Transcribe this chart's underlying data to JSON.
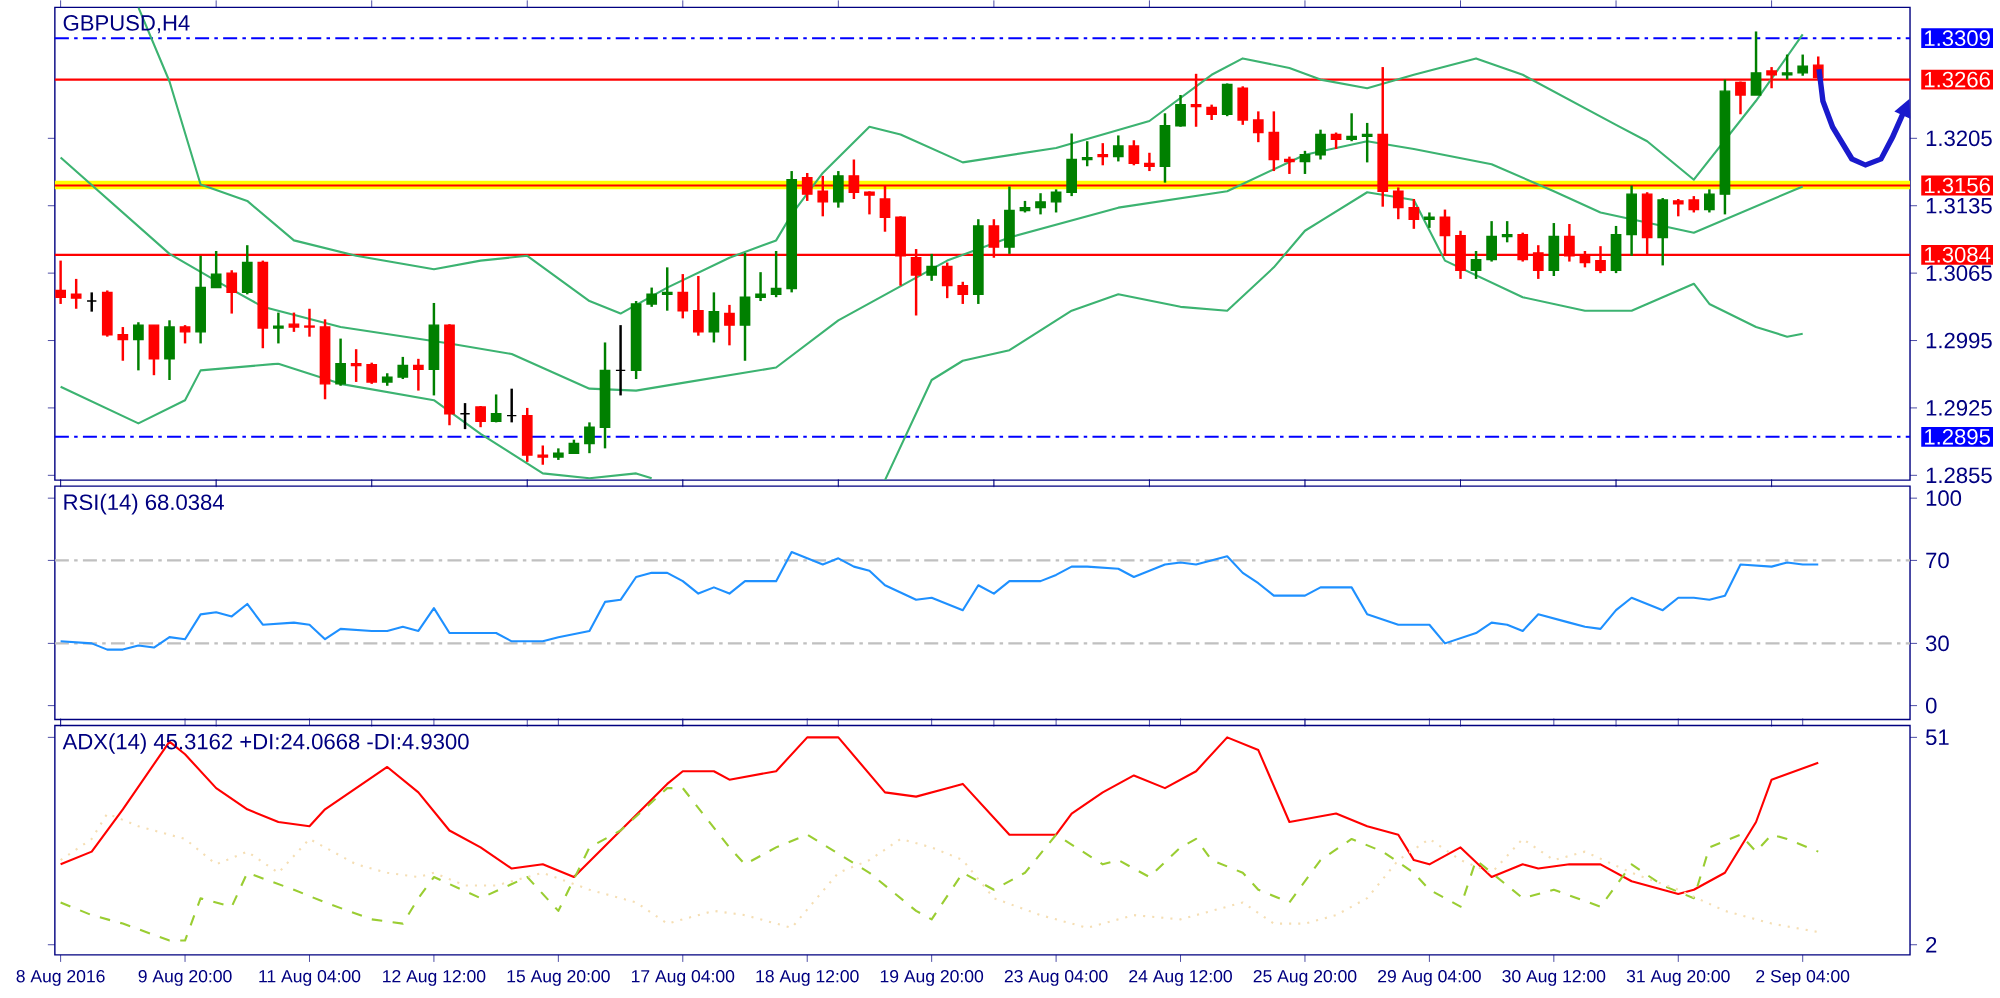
{
  "chart_data": [
    {
      "type": "candlestick",
      "title": "GBPUSD,H4",
      "categories": [
        null,
        null,
        null,
        null,
        null,
        null,
        null,
        null,
        null,
        null,
        null,
        null,
        null,
        null,
        null,
        null,
        null,
        null,
        null,
        null,
        null,
        null,
        null,
        null,
        null,
        null,
        null,
        null,
        null,
        null,
        null,
        null,
        null,
        null,
        null,
        null,
        null,
        null,
        null,
        null,
        null,
        null,
        null,
        null,
        null,
        null,
        null,
        null,
        null,
        null,
        null,
        null,
        null,
        null,
        null,
        null,
        null,
        null,
        null,
        null,
        null,
        null,
        null,
        null,
        null,
        null,
        null,
        null,
        null,
        null,
        null,
        null,
        null,
        null,
        null,
        null,
        null,
        null,
        null,
        null,
        null,
        null,
        null,
        null,
        null,
        null,
        null,
        null,
        null,
        null,
        null,
        null,
        null,
        null,
        null,
        null,
        null,
        null,
        null,
        null,
        null,
        null,
        null,
        null,
        null,
        null,
        null,
        null,
        null,
        null,
        null,
        null,
        null,
        null
      ],
      "ohlc": [
        [
          1.3047,
          1.3078,
          1.3033,
          1.304
        ],
        [
          1.3043,
          1.3059,
          1.3028,
          1.3039
        ],
        [
          1.3036,
          1.3045,
          1.3025,
          1.3036
        ],
        [
          1.3045,
          1.3047,
          1.2999,
          1.3001
        ],
        [
          1.3001,
          1.3009,
          1.2974,
          1.2996
        ],
        [
          1.2996,
          1.3014,
          1.2964,
          1.3011
        ],
        [
          1.3011,
          1.3011,
          1.2959,
          1.2976
        ],
        [
          1.2976,
          1.3016,
          1.2954,
          1.3009
        ],
        [
          1.3009,
          1.3011,
          1.2992,
          1.3004
        ],
        [
          1.3004,
          1.3083,
          1.2992,
          1.305
        ],
        [
          1.305,
          1.3088,
          1.305,
          1.3064
        ],
        [
          1.3065,
          1.3068,
          1.3023,
          1.3045
        ],
        [
          1.3045,
          1.3094,
          1.3043,
          1.3076
        ],
        [
          1.3076,
          1.3078,
          1.2987,
          1.3008
        ],
        [
          1.3008,
          1.3024,
          1.2992,
          1.301
        ],
        [
          1.3012,
          1.3024,
          1.3004,
          1.3009
        ],
        [
          1.301,
          1.3028,
          1.2999,
          1.3009
        ],
        [
          1.3009,
          1.3017,
          1.2934,
          1.295
        ],
        [
          1.295,
          1.2997,
          1.2948,
          1.2971
        ],
        [
          1.2971,
          1.2986,
          1.2952,
          1.2969
        ],
        [
          1.297,
          1.2972,
          1.295,
          1.2952
        ],
        [
          1.2952,
          1.2961,
          1.2948,
          1.2957
        ],
        [
          1.2957,
          1.2978,
          1.2955,
          1.2969
        ],
        [
          1.2969,
          1.2976,
          1.2943,
          1.2965
        ],
        [
          1.2965,
          1.3034,
          1.2938,
          1.3011
        ],
        [
          1.3011,
          1.3012,
          1.2907,
          1.2919
        ],
        [
          1.2919,
          1.293,
          1.2903,
          1.2919
        ],
        [
          1.2926,
          1.2927,
          1.2905,
          1.2911
        ],
        [
          1.2911,
          1.2939,
          1.291,
          1.2919
        ],
        [
          1.2917,
          1.2945,
          1.291,
          1.2917
        ],
        [
          1.2917,
          1.2925,
          1.2869,
          1.2876
        ],
        [
          1.2876,
          1.2886,
          1.2866,
          1.2874
        ],
        [
          1.2874,
          1.2883,
          1.2871,
          1.2878
        ],
        [
          1.2878,
          1.2892,
          1.2878,
          1.2888
        ],
        [
          1.2888,
          1.291,
          1.2878,
          1.2905
        ],
        [
          1.2905,
          1.2993,
          1.2883,
          1.2964
        ],
        [
          1.2964,
          1.3011,
          1.2938,
          1.2964
        ],
        [
          1.2964,
          1.3036,
          1.2955,
          1.3033
        ],
        [
          1.3033,
          1.305,
          1.303,
          1.3043
        ],
        [
          1.3043,
          1.3071,
          1.3026,
          1.3045
        ],
        [
          1.3045,
          1.3064,
          1.3018,
          1.3026
        ],
        [
          1.3026,
          1.3062,
          1.3,
          1.3004
        ],
        [
          1.3004,
          1.3045,
          1.2993,
          1.3025
        ],
        [
          1.3023,
          1.3032,
          1.299,
          1.3011
        ],
        [
          1.3011,
          1.3086,
          1.2974,
          1.304
        ],
        [
          1.304,
          1.3066,
          1.3036,
          1.3043
        ],
        [
          1.3043,
          1.3088,
          1.304,
          1.3049
        ],
        [
          1.3049,
          1.3171,
          1.3045,
          1.3162
        ],
        [
          1.3164,
          1.3169,
          1.314,
          1.3147
        ],
        [
          1.315,
          1.3166,
          1.3124,
          1.3139
        ],
        [
          1.3139,
          1.3171,
          1.3133,
          1.3166
        ],
        [
          1.3166,
          1.3183,
          1.3142,
          1.3149
        ],
        [
          1.3149,
          1.315,
          1.3126,
          1.3146
        ],
        [
          1.3142,
          1.3156,
          1.3108,
          1.3123
        ],
        [
          1.3123,
          1.3124,
          1.3052,
          1.3083
        ],
        [
          1.3081,
          1.309,
          1.3021,
          1.3063
        ],
        [
          1.3063,
          1.3085,
          1.3057,
          1.3072
        ],
        [
          1.3072,
          1.3076,
          1.3039,
          1.3052
        ],
        [
          1.3052,
          1.3056,
          1.3033,
          1.3043
        ],
        [
          1.3043,
          1.3121,
          1.3033,
          1.3114
        ],
        [
          1.3114,
          1.3121,
          1.3081,
          1.3092
        ],
        [
          1.3092,
          1.3155,
          1.3085,
          1.313
        ],
        [
          1.313,
          1.314,
          1.3128,
          1.3133
        ],
        [
          1.3133,
          1.3148,
          1.3126,
          1.3139
        ],
        [
          1.3139,
          1.3152,
          1.3128,
          1.3149
        ],
        [
          1.3149,
          1.321,
          1.3145,
          1.3183
        ],
        [
          1.3183,
          1.3202,
          1.3176,
          1.3185
        ],
        [
          1.3188,
          1.32,
          1.3177,
          1.3186
        ],
        [
          1.3186,
          1.3208,
          1.3181,
          1.3197
        ],
        [
          1.3197,
          1.3203,
          1.3177,
          1.3179
        ],
        [
          1.3179,
          1.319,
          1.3171,
          1.3176
        ],
        [
          1.3176,
          1.3231,
          1.3159,
          1.3218
        ],
        [
          1.3218,
          1.325,
          1.3217,
          1.324
        ],
        [
          1.324,
          1.3272,
          1.3217,
          1.3238
        ],
        [
          1.3237,
          1.324,
          1.3224,
          1.323
        ],
        [
          1.323,
          1.3262,
          1.3228,
          1.3261
        ],
        [
          1.3257,
          1.3259,
          1.3219,
          1.3224
        ],
        [
          1.3224,
          1.3233,
          1.3201,
          1.3211
        ],
        [
          1.3211,
          1.3233,
          1.3171,
          1.3183
        ],
        [
          1.3183,
          1.3186,
          1.3168,
          1.3181
        ],
        [
          1.3181,
          1.3192,
          1.3168,
          1.3188
        ],
        [
          1.3188,
          1.3214,
          1.3183,
          1.3209
        ],
        [
          1.3209,
          1.3211,
          1.3194,
          1.3204
        ],
        [
          1.3204,
          1.3231,
          1.3202,
          1.3207
        ],
        [
          1.3207,
          1.3221,
          1.318,
          1.3209
        ],
        [
          1.3209,
          1.3279,
          1.3134,
          1.315
        ],
        [
          1.315,
          1.3154,
          1.3121,
          1.3133
        ],
        [
          1.3133,
          1.3142,
          1.3111,
          1.3121
        ],
        [
          1.3121,
          1.3128,
          1.3112,
          1.3123
        ],
        [
          1.3123,
          1.3131,
          1.3083,
          1.3104
        ],
        [
          1.3104,
          1.3109,
          1.3059,
          1.3068
        ],
        [
          1.3068,
          1.3088,
          1.3059,
          1.3079
        ],
        [
          1.3079,
          1.3119,
          1.3077,
          1.3103
        ],
        [
          1.3103,
          1.3119,
          1.3097,
          1.3105
        ],
        [
          1.3105,
          1.3107,
          1.3077,
          1.3079
        ],
        [
          1.3086,
          1.3094,
          1.3059,
          1.3068
        ],
        [
          1.3068,
          1.3117,
          1.3062,
          1.3103
        ],
        [
          1.3103,
          1.3116,
          1.3077,
          1.3083
        ],
        [
          1.3083,
          1.3088,
          1.3071,
          1.3076
        ],
        [
          1.3078,
          1.3093,
          1.3065,
          1.3068
        ],
        [
          1.3068,
          1.3114,
          1.3065,
          1.3105
        ],
        [
          1.3105,
          1.3156,
          1.3083,
          1.3147
        ],
        [
          1.3147,
          1.3149,
          1.3083,
          1.3102
        ],
        [
          1.3102,
          1.3143,
          1.3073,
          1.3141
        ],
        [
          1.314,
          1.3142,
          1.3124,
          1.3137
        ],
        [
          1.3141,
          1.3145,
          1.3128,
          1.3131
        ],
        [
          1.3131,
          1.3152,
          1.3128,
          1.3147
        ],
        [
          1.3147,
          1.3266,
          1.3126,
          1.3254
        ],
        [
          1.3263,
          1.3264,
          1.323,
          1.325
        ],
        [
          1.325,
          1.3316,
          1.325,
          1.3273
        ],
        [
          1.3275,
          1.3279,
          1.3257,
          1.3271
        ],
        [
          1.3271,
          1.3292,
          1.3266,
          1.3273
        ],
        [
          1.3273,
          1.3292,
          1.327,
          1.328
        ],
        [
          1.3281,
          1.329,
          1.3266,
          1.3268
        ]
      ],
      "colors": [
        "#ff0000",
        "#ff0000",
        "#000000",
        "#ff0000",
        "#ff0000",
        "#008000",
        "#ff0000",
        "#008000",
        "#ff0000",
        "#008000",
        "#008000",
        "#ff0000",
        "#008000",
        "#ff0000",
        "#008000",
        "#ff0000",
        "#ff0000",
        "#ff0000",
        "#008000",
        "#ff0000",
        "#ff0000",
        "#008000",
        "#008000",
        "#ff0000",
        "#008000",
        "#ff0000",
        "#000000",
        "#ff0000",
        "#008000",
        "#000000",
        "#ff0000",
        "#ff0000",
        "#008000",
        "#008000",
        "#008000",
        "#008000",
        "#000000",
        "#008000",
        "#008000",
        "#008000",
        "#ff0000",
        "#ff0000",
        "#008000",
        "#ff0000",
        "#008000",
        "#008000",
        "#008000",
        "#008000",
        "#ff0000",
        "#ff0000",
        "#008000",
        "#ff0000",
        "#ff0000",
        "#ff0000",
        "#ff0000",
        "#ff0000",
        "#008000",
        "#ff0000",
        "#ff0000",
        "#008000",
        "#ff0000",
        "#008000",
        "#008000",
        "#008000",
        "#008000",
        "#008000",
        "#008000",
        "#ff0000",
        "#008000",
        "#ff0000",
        "#ff0000",
        "#008000",
        "#008000",
        "#ff0000",
        "#ff0000",
        "#008000",
        "#ff0000",
        "#ff0000",
        "#ff0000",
        "#ff0000",
        "#008000",
        "#008000",
        "#ff0000",
        "#008000",
        "#008000",
        "#ff0000",
        "#ff0000",
        "#ff0000",
        "#008000",
        "#ff0000",
        "#ff0000",
        "#008000",
        "#008000",
        "#008000",
        "#ff0000",
        "#ff0000",
        "#008000",
        "#ff0000",
        "#ff0000",
        "#ff0000",
        "#008000",
        "#008000",
        "#ff0000",
        "#008000",
        "#ff0000",
        "#ff0000",
        "#008000",
        "#008000",
        "#ff0000",
        "#008000",
        "#ff0000",
        "#008000",
        "#008000",
        "#ff0000"
      ],
      "series": [
        {
          "type": "line",
          "color": "#3cb371",
          "values": [
            null,
            null,
            null,
            null,
            null,
            1.3341,
            null,
            1.3264,
            null,
            1.3157,
            null,
            null,
            1.314,
            null,
            null,
            1.3099,
            null,
            null,
            null,
            1.3083,
            null,
            null,
            null,
            null,
            1.3069,
            null,
            null,
            1.3078,
            null,
            null,
            1.3083,
            null,
            null,
            null,
            1.3036,
            null,
            1.3023,
            null,
            null,
            1.305,
            null,
            null,
            null,
            1.3081,
            null,
            null,
            1.3099,
            1.3126,
            null,
            1.3169,
            null,
            null,
            1.3217,
            null,
            1.3209,
            null,
            null,
            null,
            1.318,
            null,
            null,
            null,
            null,
            null,
            1.3195,
            null,
            null,
            null,
            null,
            null,
            1.3223,
            null,
            null,
            null,
            1.3271,
            null,
            1.3288,
            null,
            null,
            1.3278,
            null,
            1.3266,
            null,
            null,
            1.3257,
            null,
            null,
            1.3271,
            null,
            null,
            null,
            1.3288,
            null,
            null,
            1.3271,
            null,
            null,
            null,
            null,
            null,
            1.3219,
            null,
            1.3202,
            null,
            null,
            1.3162,
            null,
            null,
            null,
            1.3244,
            null,
            null,
            1.3313,
            null
          ]
        },
        {
          "type": "line",
          "color": "#3cb371",
          "values": [
            1.3185,
            null,
            null,
            null,
            null,
            null,
            null,
            1.3085,
            null,
            null,
            1.3057,
            null,
            null,
            1.303,
            null,
            null,
            null,
            null,
            1.3009,
            null,
            null,
            null,
            null,
            null,
            null,
            1.2992,
            null,
            null,
            null,
            1.2981,
            null,
            null,
            null,
            null,
            1.2945,
            null,
            null,
            1.2943,
            null,
            null,
            1.2951,
            null,
            null,
            null,
            null,
            null,
            1.2967,
            null,
            null,
            null,
            1.3016,
            null,
            null,
            null,
            null,
            null,
            null,
            1.3078,
            null,
            null,
            null,
            1.3102,
            null,
            null,
            null,
            null,
            null,
            null,
            1.3133,
            null,
            null,
            null,
            null,
            null,
            null,
            1.315,
            null,
            null,
            null,
            null,
            1.3188,
            null,
            null,
            null,
            1.3202,
            null,
            null,
            1.3194,
            null,
            null,
            null,
            null,
            1.3178,
            null,
            null,
            null,
            1.315,
            null,
            null,
            1.3128,
            null,
            null,
            null,
            null,
            null,
            1.3107,
            null,
            null,
            null,
            null,
            null,
            null,
            1.3155,
            null
          ]
        },
        {
          "type": "line",
          "color": "#3cb371",
          "values": [
            1.2947,
            null,
            null,
            null,
            null,
            1.2909,
            null,
            null,
            1.2933,
            1.2964,
            null,
            null,
            null,
            null,
            1.2971,
            null,
            null,
            null,
            1.295,
            null,
            null,
            null,
            null,
            null,
            1.2933,
            null,
            null,
            1.2898,
            null,
            null,
            null,
            1.2857,
            null,
            null,
            1.2852,
            null,
            null,
            1.2857,
            1.2852,
            null,
            null,
            null,
            null,
            null,
            null,
            null,
            null,
            null,
            null,
            null,
            null,
            null,
            null,
            null,
            null,
            null,
            null,
            null,
            null,
            null,
            null,
            null,
            null,
            null,
            null,
            null,
            null,
            null,
            null,
            null,
            null,
            null,
            null,
            null,
            null,
            null,
            null,
            null,
            null,
            null,
            null,
            null,
            null,
            null,
            null,
            null,
            null,
            null,
            null,
            null,
            null,
            null,
            null,
            null,
            null,
            null,
            null,
            null,
            null,
            null,
            null,
            null,
            null,
            null,
            null,
            null,
            null,
            null,
            null,
            null,
            null,
            null,
            null,
            null
          ]
        },
        {
          "type": "line",
          "color": "#3cb371",
          "values": [
            null,
            null,
            null,
            null,
            null,
            null,
            null,
            null,
            null,
            null,
            null,
            null,
            null,
            null,
            null,
            null,
            null,
            null,
            null,
            null,
            null,
            null,
            null,
            null,
            null,
            null,
            null,
            null,
            null,
            null,
            null,
            null,
            null,
            null,
            null,
            null,
            null,
            null,
            null,
            null,
            null,
            null,
            null,
            null,
            null,
            null,
            null,
            null,
            null,
            null,
            null,
            null,
            null,
            1.285,
            null,
            null,
            1.2954,
            null,
            1.2974,
            null,
            null,
            1.2985,
            null,
            null,
            null,
            1.3026,
            null,
            null,
            1.3043,
            null,
            null,
            null,
            1.303,
            null,
            null,
            1.3026,
            null,
            null,
            1.3071,
            null,
            1.3109,
            1.3119,
            null,
            null,
            1.3149,
            null,
            null,
            1.3141,
            null,
            1.3078,
            null,
            null,
            null,
            null,
            1.304,
            null,
            null,
            null,
            1.3026,
            null,
            null,
            1.3026,
            null,
            null,
            null,
            1.3054,
            1.3033,
            null,
            null,
            1.3009,
            null,
            1.2999,
            1.3002,
            null
          ]
        }
      ],
      "ylim": [
        1.285,
        1.3341
      ],
      "yticks": [
        1.2855,
        1.2925,
        1.2995,
        1.3065,
        1.3135,
        1.3205
      ],
      "bands": [
        {
          "axis": "y",
          "from": 1.3152,
          "to": 1.3161,
          "color": "#ffff00"
        }
      ],
      "ref_lines": [
        {
          "axis": "y",
          "value": 1.3309,
          "label": "1.3309",
          "color": "#0000ff",
          "line_style": "dashed"
        },
        {
          "axis": "y",
          "value": 1.3266,
          "label": "1.3266",
          "color": "#ff0000",
          "line_style": "solid"
        },
        {
          "axis": "y",
          "value": 1.3156,
          "label": "1.3156",
          "color": "#ff0000",
          "line_style": "solid"
        },
        {
          "axis": "y",
          "value": 1.3084,
          "label": "1.3084",
          "color": "#ff0000",
          "line_style": "solid"
        },
        {
          "axis": "y",
          "value": 1.2895,
          "label": "1.2895",
          "color": "#0000ff",
          "line_style": "dashed"
        }
      ],
      "marker": "none",
      "tick_labels": "y"
    },
    {
      "type": "line",
      "title": "RSI(14) 68.0384",
      "categories": [
        null,
        null,
        null,
        null,
        null,
        null,
        null,
        null,
        null,
        null,
        null,
        null,
        null,
        null,
        null,
        null,
        null,
        null,
        null,
        null,
        null,
        null,
        null,
        null,
        null,
        null,
        null,
        null,
        null,
        null,
        null,
        null,
        null,
        null,
        null,
        null,
        null,
        null,
        null,
        null,
        null,
        null,
        null,
        null,
        null,
        null,
        null,
        null,
        null,
        null,
        null,
        null,
        null,
        null,
        null,
        null,
        null,
        null,
        null,
        null,
        null,
        null,
        null,
        null,
        null,
        null,
        null,
        null,
        null,
        null,
        null,
        null,
        null,
        null,
        null,
        null,
        null,
        null,
        null,
        null,
        null,
        null,
        null,
        null,
        null,
        null,
        null,
        null,
        null,
        null,
        null,
        null,
        null,
        null,
        null,
        null,
        null,
        null,
        null,
        null,
        null,
        null,
        null,
        null,
        null,
        null,
        null,
        null,
        null,
        null,
        null,
        null,
        null,
        null
      ],
      "series": [
        {
          "color": "#1e90ff",
          "values": [
            31,
            null,
            30,
            27,
            27,
            29,
            28,
            33,
            32,
            44,
            45,
            43,
            49,
            39,
            null,
            40,
            39,
            32,
            37,
            null,
            36,
            36,
            38,
            36,
            47,
            35,
            null,
            35,
            35,
            31,
            null,
            31,
            33,
            null,
            36,
            50,
            51,
            62,
            64,
            64,
            60,
            54,
            57,
            54,
            60,
            null,
            60,
            74,
            71,
            68,
            71,
            67,
            65,
            58,
            null,
            51,
            52,
            49,
            46,
            58,
            54,
            60,
            null,
            60,
            63,
            67,
            67,
            null,
            66,
            62,
            null,
            68,
            69,
            68,
            null,
            72,
            64,
            59,
            53,
            null,
            53,
            57,
            null,
            57,
            44,
            null,
            39,
            null,
            39,
            30,
            null,
            35,
            40,
            39,
            36,
            44,
            null,
            40,
            38,
            37,
            46,
            52,
            null,
            46,
            52,
            52,
            51,
            53,
            68,
            null,
            67,
            69,
            68,
            68
          ]
        }
      ],
      "ylim": [
        -6.7,
        105.8
      ],
      "yticks": [
        0,
        30,
        70,
        100
      ],
      "ref_lines": [
        {
          "axis": "y",
          "value": 30,
          "color": "#c0c0c0",
          "line_style": "dashed"
        },
        {
          "axis": "y",
          "value": 70,
          "color": "#c0c0c0",
          "line_style": "dashed"
        }
      ],
      "marker": "none",
      "tick_labels": "y"
    },
    {
      "type": "line",
      "title": "ADX(14) 45.3162 +DI:24.0668 -DI:4.9300",
      "categories": [
        "8 Aug 2016",
        null,
        null,
        null,
        null,
        null,
        null,
        null,
        "9 Aug 20:00",
        null,
        null,
        null,
        null,
        null,
        null,
        null,
        "11 Aug 04:00",
        null,
        null,
        null,
        null,
        null,
        null,
        null,
        "12 Aug 12:00",
        null,
        null,
        null,
        null,
        null,
        null,
        null,
        "15 Aug 20:00",
        null,
        null,
        null,
        null,
        null,
        null,
        null,
        "17 Aug 04:00",
        null,
        null,
        null,
        null,
        null,
        null,
        null,
        "18 Aug 12:00",
        null,
        null,
        null,
        null,
        null,
        null,
        null,
        "19 Aug 20:00",
        null,
        null,
        null,
        null,
        null,
        null,
        null,
        "23 Aug 04:00",
        null,
        null,
        null,
        null,
        null,
        null,
        null,
        "24 Aug 12:00",
        null,
        null,
        null,
        null,
        null,
        null,
        null,
        "25 Aug 20:00",
        null,
        null,
        null,
        null,
        null,
        null,
        null,
        "29 Aug 04:00",
        null,
        null,
        null,
        null,
        null,
        null,
        null,
        "30 Aug 12:00",
        null,
        null,
        null,
        null,
        null,
        null,
        null,
        "31 Aug 20:00",
        null,
        null,
        null,
        null,
        null,
        null,
        null,
        "2 Sep 04:00",
        null
      ],
      "series": [
        {
          "color": "#ff0000",
          "line_style": "solid",
          "values": [
            21,
            null,
            24,
            null,
            34,
            null,
            null,
            50,
            47,
            null,
            39,
            null,
            34,
            null,
            31,
            null,
            30,
            34,
            null,
            null,
            null,
            44,
            null,
            38,
            null,
            29,
            null,
            25,
            null,
            20,
            null,
            21,
            null,
            18,
            null,
            null,
            29,
            null,
            null,
            40,
            43,
            null,
            43,
            41,
            null,
            null,
            43,
            null,
            51,
            null,
            51,
            null,
            null,
            38,
            null,
            37,
            null,
            39,
            40,
            null,
            null,
            28,
            null,
            null,
            28,
            33,
            null,
            38,
            null,
            42,
            null,
            39,
            null,
            43,
            null,
            51,
            null,
            48,
            null,
            31,
            null,
            null,
            33,
            null,
            30,
            null,
            28,
            22,
            21,
            null,
            25,
            null,
            18,
            null,
            21,
            20,
            null,
            21,
            null,
            21,
            null,
            17,
            null,
            null,
            14,
            15,
            null,
            19,
            null,
            31,
            41,
            null,
            null,
            45
          ]
        },
        {
          "color": "#9acd32",
          "line_style": "dashed",
          "values": [
            12,
            null,
            9,
            null,
            7,
            null,
            null,
            3,
            3,
            13,
            null,
            11,
            19,
            null,
            null,
            15,
            null,
            12,
            null,
            null,
            8,
            null,
            7,
            13,
            18,
            null,
            null,
            13,
            null,
            null,
            18,
            null,
            10,
            null,
            25,
            null,
            29,
            null,
            null,
            39,
            39,
            null,
            null,
            25,
            21,
            null,
            25,
            null,
            28,
            null,
            null,
            null,
            19,
            null,
            null,
            10,
            8,
            null,
            19,
            null,
            15,
            null,
            19,
            null,
            28,
            null,
            null,
            21,
            22,
            null,
            18,
            null,
            25,
            27,
            22,
            null,
            19,
            15,
            null,
            12,
            null,
            22,
            null,
            27,
            null,
            24,
            null,
            19,
            15,
            null,
            11,
            22,
            null,
            null,
            13,
            null,
            15,
            null,
            null,
            11,
            null,
            21,
            null,
            16,
            null,
            13,
            25,
            null,
            28,
            24,
            28,
            27,
            null,
            24
          ]
        },
        {
          "color": "#f5deb3",
          "line_style": "dotted",
          "values": [
            22,
            null,
            27,
            33,
            null,
            30,
            null,
            null,
            27,
            null,
            21,
            null,
            24,
            null,
            19,
            null,
            27,
            25,
            null,
            21,
            null,
            19,
            null,
            18,
            19,
            null,
            16,
            null,
            16,
            null,
            null,
            19,
            null,
            null,
            15,
            null,
            null,
            12,
            null,
            7,
            null,
            null,
            10,
            null,
            9,
            null,
            null,
            6,
            null,
            null,
            19,
            null,
            22,
            null,
            27,
            null,
            25,
            null,
            22,
            null,
            13,
            null,
            null,
            9,
            null,
            null,
            6,
            null,
            null,
            9,
            null,
            null,
            8,
            null,
            null,
            null,
            12,
            null,
            7,
            null,
            7,
            null,
            9,
            null,
            13,
            null,
            22,
            null,
            27,
            null,
            22,
            null,
            19,
            null,
            27,
            null,
            22,
            null,
            24,
            null,
            null,
            19,
            null,
            null,
            15,
            null,
            null,
            10,
            null,
            null,
            7,
            null,
            null,
            5
          ]
        }
      ],
      "ylim": [
        -0.4,
        53.8
      ],
      "yticks": [
        2,
        51
      ],
      "marker": "none"
    }
  ]
}
